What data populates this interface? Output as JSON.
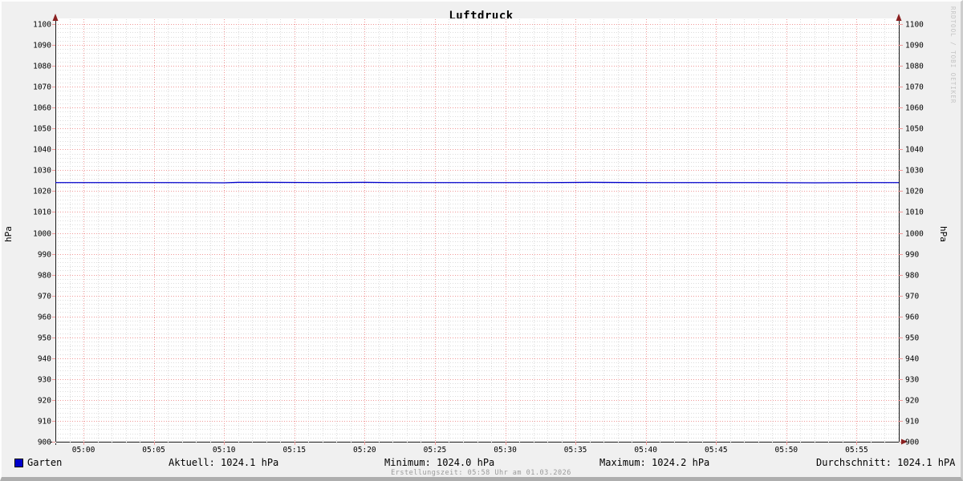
{
  "title": "Luftdruck",
  "watermark": "RRDTOOL / TOBI OETIKER",
  "y_axis": {
    "label_left": "hPa",
    "label_right": "hPa"
  },
  "legend": {
    "series_swatch_color": "#0000cc",
    "series_label": "Garten",
    "aktuell": "Aktuell: 1024.1 hPa",
    "minimum": "Minimum: 1024.0 hPa",
    "maximum": "Maximum: 1024.2 hPa",
    "durchschnitt": "Durchschnitt: 1024.1 hPA"
  },
  "footer": "Erstellungszeit: 05:58 Uhr am 01.03.2026",
  "chart_data": {
    "type": "line",
    "title": "Luftdruck",
    "ylabel": "hPa",
    "ylim": [
      900,
      1100
    ],
    "y_major_step": 10,
    "y_minor_step": 2,
    "x_start": "04:58",
    "x_end": "05:58",
    "x_major_step_min": 5,
    "x_minor_step_min": 1,
    "x_tick_labels": [
      "05:00",
      "05:05",
      "05:10",
      "05:15",
      "05:20",
      "05:25",
      "05:30",
      "05:35",
      "05:40",
      "05:45",
      "05:50",
      "05:55"
    ],
    "grid": {
      "major_color": "#f09898",
      "minor_color": "#dcdcdc",
      "style": "dotted"
    },
    "axis_color": "#1c1c1c",
    "arrow_color": "#8a2020",
    "plot_background": "#ffffff",
    "legend_position": "bottom",
    "series": [
      {
        "name": "Garten",
        "color": "#0000cc",
        "x": [
          "04:58",
          "05:02",
          "05:06",
          "05:10",
          "05:11",
          "05:13",
          "05:17",
          "05:20",
          "05:22",
          "05:26",
          "05:30",
          "05:33",
          "05:36",
          "05:40",
          "05:44",
          "05:48",
          "05:52",
          "05:55",
          "05:58"
        ],
        "values": [
          1024.1,
          1024.1,
          1024.1,
          1024.0,
          1024.2,
          1024.2,
          1024.1,
          1024.2,
          1024.1,
          1024.1,
          1024.1,
          1024.1,
          1024.2,
          1024.1,
          1024.1,
          1024.1,
          1024.0,
          1024.1,
          1024.1
        ]
      }
    ],
    "stats": {
      "aktuell_hPa": 1024.1,
      "minimum_hPa": 1024.0,
      "maximum_hPa": 1024.2,
      "durchschnitt_hPa": 1024.1
    }
  }
}
